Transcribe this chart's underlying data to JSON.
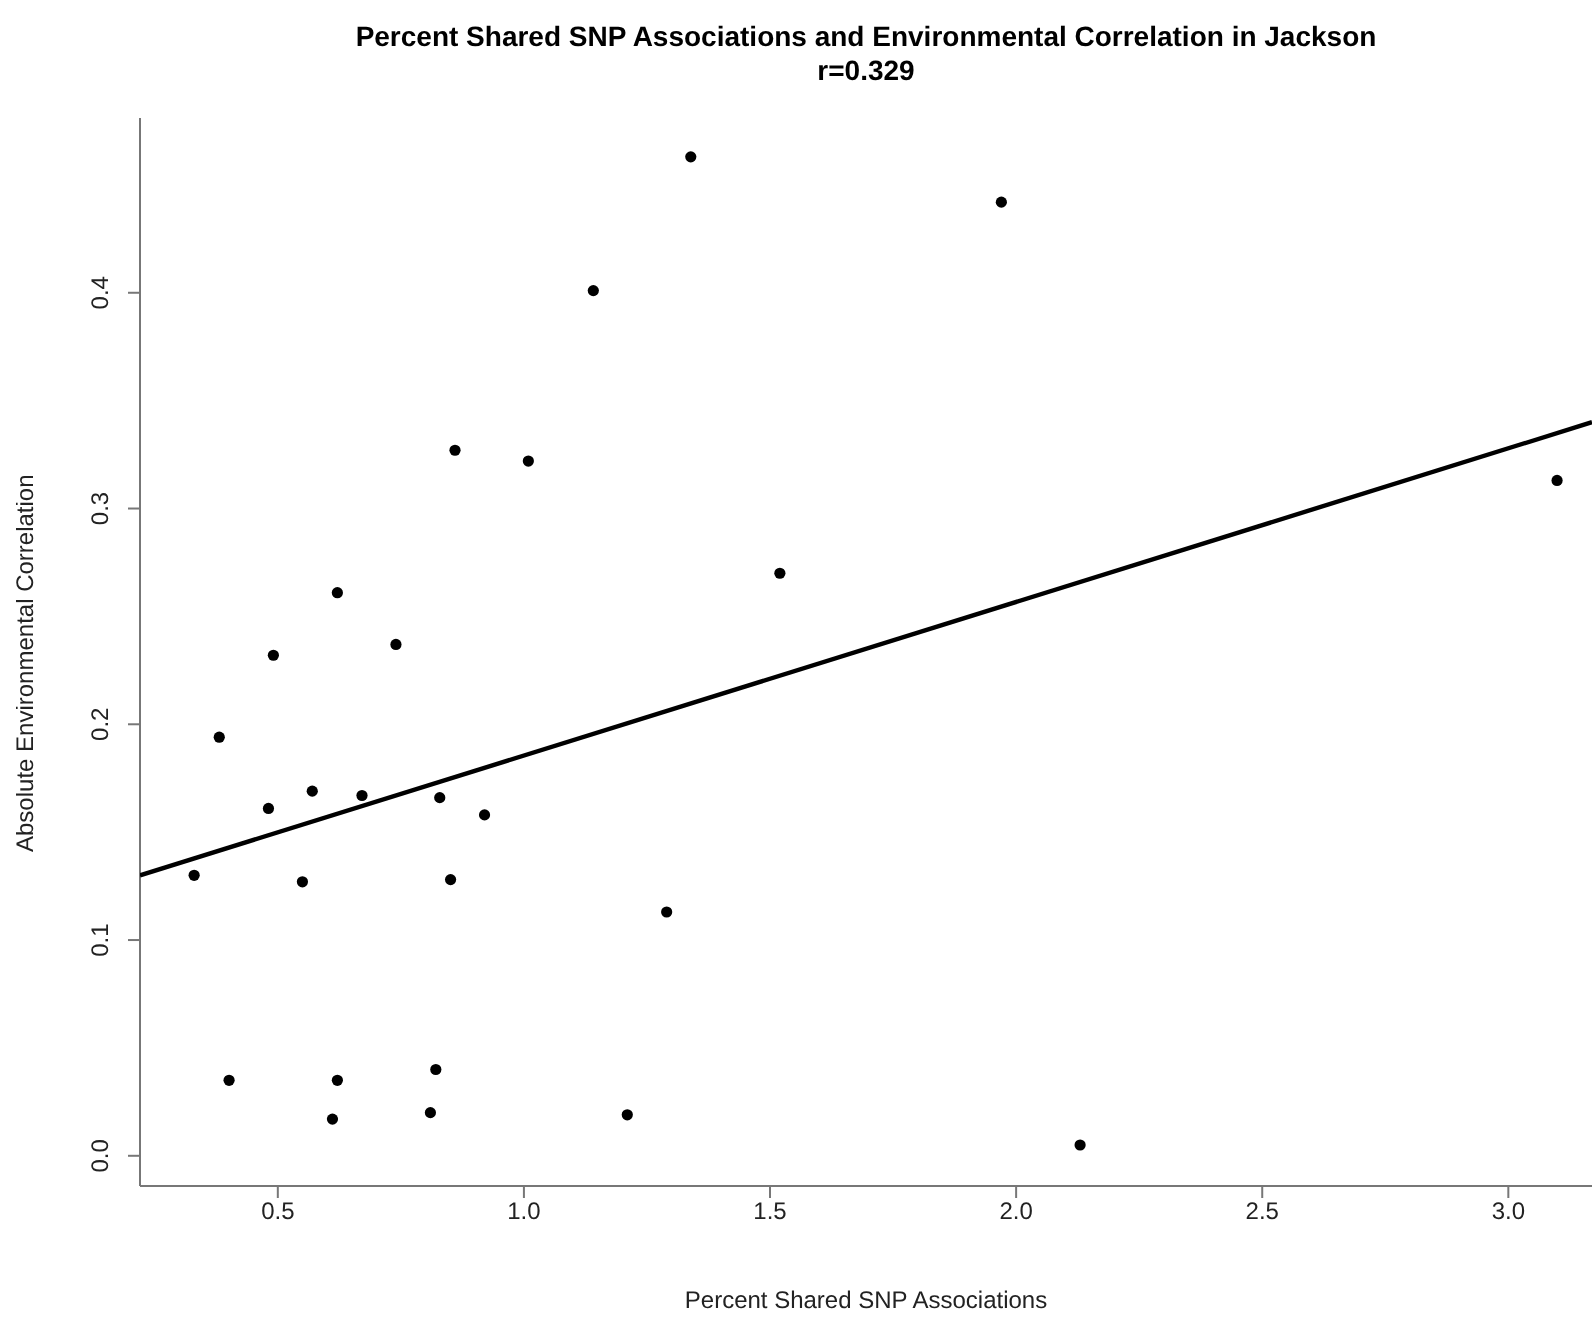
{
  "chart_data": {
    "type": "scatter",
    "title": "Percent Shared SNP Associations and Environmental Correlation in Jackson",
    "subtitle": "r=0.329",
    "xlabel": "Percent Shared SNP Associations",
    "ylabel": "Absolute Environmental Correlation",
    "xlim": [
      0.22,
      3.17
    ],
    "xticks": [
      0.5,
      {
        "value": 1,
        "label": "1.0"
      },
      1.5,
      {
        "value": 2,
        "label": "2.0"
      },
      2.5,
      {
        "value": 3,
        "label": "3.0"
      }
    ],
    "ylim": [
      -0.014,
      0.481
    ],
    "yticks": [
      {
        "value": 0,
        "label": "0.0"
      },
      0.1,
      0.2,
      0.3,
      0.4
    ],
    "grid": false,
    "legend": false,
    "marker": "circle",
    "series": [
      {
        "color": "#000000",
        "x": [
          1.339,
          1.141,
          0.86,
          1.009,
          1.52,
          0.621,
          0.74,
          0.491,
          0.381,
          0.57,
          0.671,
          0.481,
          0.829,
          0.92,
          0.33,
          0.55,
          0.851,
          1.29,
          0.401,
          0.621,
          0.821,
          0.611,
          0.81,
          1.21,
          1.97,
          3.099,
          2.13
        ],
        "values": [
          0.463,
          0.401,
          0.327,
          0.322,
          0.27,
          0.261,
          0.237,
          0.232,
          0.194,
          0.169,
          0.167,
          0.161,
          0.166,
          0.158,
          0.13,
          0.127,
          0.128,
          0.113,
          0.035,
          0.035,
          0.04,
          0.017,
          0.02,
          0.019,
          0.442,
          0.313,
          0.005
        ]
      },
      {
        "type": "line",
        "color": "#000000",
        "marker": "none",
        "line_style": "solid",
        "x": [
          0.22,
          3.17
        ],
        "values": [
          0.13,
          0.34
        ]
      }
    ]
  }
}
